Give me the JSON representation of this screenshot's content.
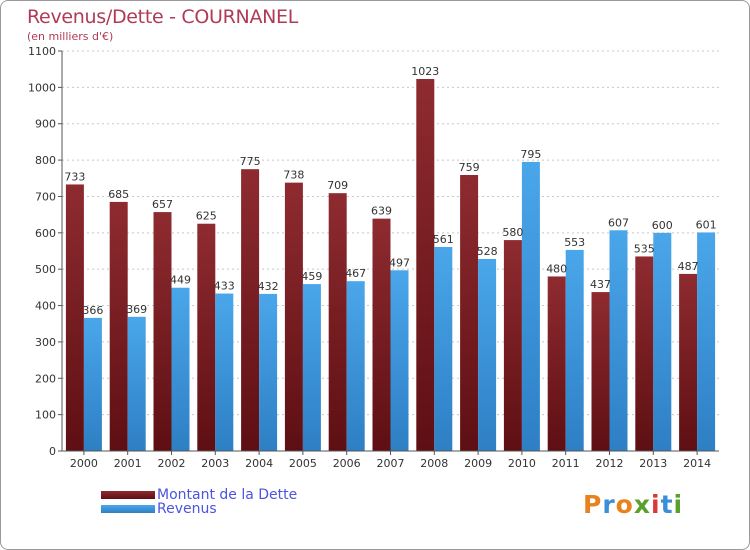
{
  "header": {
    "title": "Revenus/Dette - COURNANEL",
    "subtitle": "(en milliers d'€)"
  },
  "colors": {
    "debt": "#7b1f23",
    "revenue": "#3a95dd",
    "title": "#b03a58"
  },
  "legend": {
    "debt_label": "Montant de la Dette",
    "revenue_label": "Revenus"
  },
  "logo": {
    "letters": [
      "P",
      "r",
      "o",
      "x",
      "i",
      "t",
      "i"
    ],
    "letter_colors": [
      "#e8821e",
      "#3a8fd8",
      "#e8821e",
      "#5aa02c",
      "#d63a3a",
      "#3a8fd8",
      "#5aa02c"
    ]
  },
  "chart_data": {
    "type": "bar",
    "title": "Revenus/Dette - COURNANEL",
    "ylabel": "(en milliers d'€)",
    "ylim": [
      0,
      1100
    ],
    "yticks": [
      0,
      100,
      200,
      300,
      400,
      500,
      600,
      700,
      800,
      900,
      1000,
      1100
    ],
    "grid": true,
    "categories": [
      "2000",
      "2001",
      "2002",
      "2003",
      "2004",
      "2005",
      "2006",
      "2007",
      "2008",
      "2009",
      "2010",
      "2011",
      "2012",
      "2013",
      "2014"
    ],
    "series": [
      {
        "name": "Montant de la Dette",
        "values": [
          733,
          685,
          657,
          625,
          775,
          738,
          709,
          639,
          1023,
          759,
          580,
          480,
          437,
          535,
          487
        ]
      },
      {
        "name": "Revenus",
        "values": [
          366,
          369,
          449,
          433,
          432,
          459,
          467,
          497,
          561,
          528,
          795,
          553,
          607,
          600,
          601
        ]
      }
    ],
    "legend_position": "bottom-left"
  }
}
